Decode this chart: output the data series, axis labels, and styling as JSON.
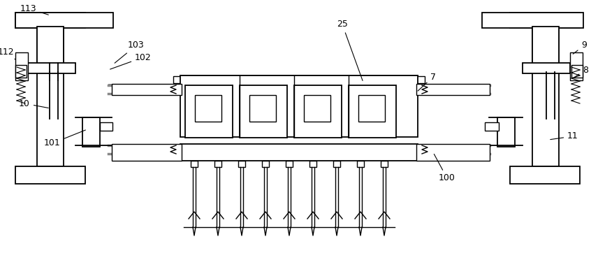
{
  "bg_color": "#ffffff",
  "line_color": "#000000",
  "gray_color": "#888888",
  "fig_width": 8.56,
  "fig_height": 3.62,
  "dpi": 100
}
